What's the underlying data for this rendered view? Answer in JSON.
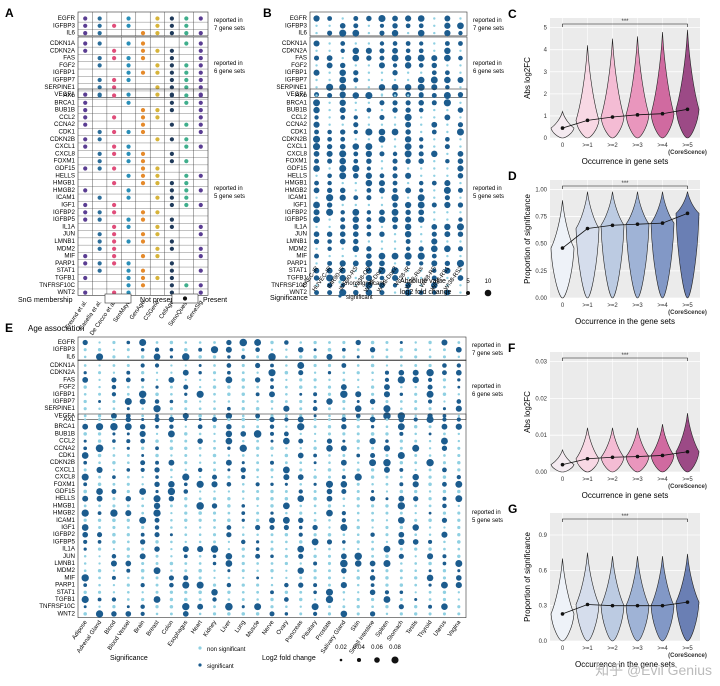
{
  "watermark": "知乎 @Evil Genius",
  "colors": {
    "sig": "#1c5c8e",
    "nonsig": "#8fd0e2",
    "sources": [
      "#5a3d92",
      "#2c6e9a",
      "#e04d7a",
      "#2a8fb8",
      "#e58a2b",
      "#d7b43a",
      "#1f3a5a",
      "#3fae8c"
    ]
  },
  "genes": {
    "group7": [
      "EGFR",
      "IGFBP3",
      "IL6"
    ],
    "group6": [
      "CDKN1A",
      "CDKN2A",
      "FAS",
      "FGF2",
      "IGFBP1",
      "IGFBP7",
      "SERPINE1",
      "VEGFA"
    ],
    "group5": [
      "AXL",
      "BRCA1",
      "BUB1B",
      "CCL2",
      "CCNA2",
      "CDK1",
      "CDKN2B",
      "CXCL1",
      "CXCL8",
      "FOXM1",
      "GDF15",
      "HELLS",
      "HMGB1",
      "HMGB2",
      "ICAM1",
      "IGF1",
      "IGFBP2",
      "IGFBP5",
      "IL1A",
      "JUN",
      "LMNB1",
      "MDM2",
      "MIF",
      "PARP1",
      "STAT1",
      "TGFB1",
      "TNFRSF10C",
      "WNT2"
    ]
  },
  "groupLabels": {
    "g7": [
      "reported in",
      "7 gene sets"
    ],
    "g6": [
      "reported in",
      "6 gene sets"
    ],
    "g5": [
      "reported in",
      "5 gene sets"
    ]
  },
  "panelA": {
    "letter": "A",
    "sources": [
      "Freund et al.",
      "Casella et al.",
      "De Cecco et al.",
      "SenMayo",
      "GenAge",
      "CSGene",
      "CellAge",
      "SenoQuest",
      "SeneSig"
    ],
    "legend": {
      "title": "SnG membership",
      "absent": "Not present",
      "present": "Present"
    }
  },
  "panelB": {
    "letter": "B",
    "conditions": [
      "HAEC-IR",
      "HUVEC-IR",
      "IMR90-IR",
      "IMR90-RS",
      "WI38-OD",
      "WI38-Dox1",
      "WI38-Dox2",
      "WI38-IR",
      "WI38-Ras",
      "WI38-RS",
      "WI38-RS1",
      "WI38-RS2"
    ],
    "legend": {
      "title": "Significance",
      "nonsig": "non significant",
      "sig": "significant",
      "sizeTitle1": "Absolute value",
      "sizeTitle2": "log2 fold change",
      "s1": "5",
      "s2": "10"
    }
  },
  "panelE": {
    "letter": "E",
    "title": "Age association",
    "tissues": [
      "Adipose",
      "Adrenal Gland",
      "Blood",
      "Blood Vessel",
      "Brain",
      "Breast",
      "Colon",
      "Esophagus",
      "Heart",
      "Kidney",
      "Liver",
      "Lung",
      "Muscle",
      "Nerve",
      "Ovary",
      "Pancreas",
      "Pituitary",
      "Prostate",
      "Salivary Gland",
      "Skin",
      "Small Intestine",
      "Spleen",
      "Stomach",
      "Testis",
      "Thyroid",
      "Uterus",
      "Vagina"
    ],
    "legend": {
      "title": "Significance",
      "nonsig": "non significant",
      "sig": "significant",
      "sizeTitle": "Log2 fold change",
      "s1": "0.02",
      "s2": "0.04",
      "s3": "0.06",
      "s4": "0.08"
    }
  },
  "chart_data": [
    {
      "type": "violin",
      "panel": "C",
      "title": "",
      "xlabel": "Occurrence in gene sets",
      "ylabel": "Abs log2FC",
      "categories": [
        "0",
        ">=1",
        ">=2",
        ">=3",
        ">=4",
        ">=5"
      ],
      "last_sublabel": "(CoreScence)",
      "ylim": [
        0,
        5
      ],
      "yticks": [
        "0",
        "1",
        "2",
        "3",
        "4",
        "5"
      ],
      "medians": [
        0.45,
        0.8,
        0.95,
        1.05,
        1.1,
        1.3
      ],
      "maxima": [
        1.2,
        4.2,
        4.5,
        4.6,
        4.8,
        4.9
      ],
      "significance": "***",
      "fills": [
        "#f4eaf0",
        "#f8d8e4",
        "#f4bcd4",
        "#e996bd",
        "#d06aa0",
        "#9c4a86"
      ]
    },
    {
      "type": "violin",
      "panel": "D",
      "title": "",
      "xlabel": "Occurrence in the gene sets",
      "ylabel": "Proportion of significance",
      "categories": [
        "0",
        ">=1",
        ">=2",
        ">=3",
        ">=4",
        ">=5"
      ],
      "last_sublabel": "(CoreScence)",
      "ylim": [
        0,
        1
      ],
      "yticks": [
        "0.00",
        "0.25",
        "0.50",
        "0.75",
        "1.00"
      ],
      "medians": [
        0.46,
        0.64,
        0.67,
        0.68,
        0.69,
        0.78
      ],
      "maxima": [
        0.9,
        0.98,
        0.98,
        0.98,
        0.98,
        0.98
      ],
      "significance": "***",
      "fills": [
        "#eef2f8",
        "#d5ddec",
        "#bccbe2",
        "#9fb3d6",
        "#8298c6",
        "#6a7fb4"
      ]
    },
    {
      "type": "violin",
      "panel": "F",
      "title": "",
      "xlabel": "Occurrence in gene sets",
      "ylabel": "Abs log2FC",
      "categories": [
        "0",
        ">=1",
        ">=2",
        ">=3",
        ">=4",
        ">=5"
      ],
      "last_sublabel": "(CoreScence)",
      "ylim": [
        0,
        0.03
      ],
      "yticks": [
        "0.00",
        "0.01",
        "0.02",
        "0.03"
      ],
      "medians": [
        0.002,
        0.0036,
        0.004,
        0.0042,
        0.0045,
        0.0055
      ],
      "maxima": [
        0.006,
        0.012,
        0.012,
        0.012,
        0.013,
        0.016
      ],
      "significance": "***",
      "fills": [
        "#f4eaf0",
        "#f8d8e4",
        "#f4bcd4",
        "#e996bd",
        "#d06aa0",
        "#9c4a86"
      ]
    },
    {
      "type": "violin",
      "panel": "G",
      "title": "",
      "xlabel": "Occurrence in the gene sets",
      "ylabel": "Proportion of significance",
      "categories": [
        "0",
        ">=1",
        ">=2",
        ">=3",
        ">=4",
        ">=5"
      ],
      "last_sublabel": "(CoreScence)",
      "ylim": [
        0,
        1
      ],
      "yticks": [
        "0.0",
        "0.3",
        "0.6",
        "0.9"
      ],
      "medians": [
        0.23,
        0.31,
        0.3,
        0.3,
        0.3,
        0.33
      ],
      "maxima": [
        0.7,
        0.75,
        0.72,
        0.72,
        0.72,
        0.74
      ],
      "significance": "***",
      "fills": [
        "#eef2f8",
        "#d5ddec",
        "#bccbe2",
        "#9fb3d6",
        "#8298c6",
        "#6a7fb4"
      ]
    }
  ]
}
